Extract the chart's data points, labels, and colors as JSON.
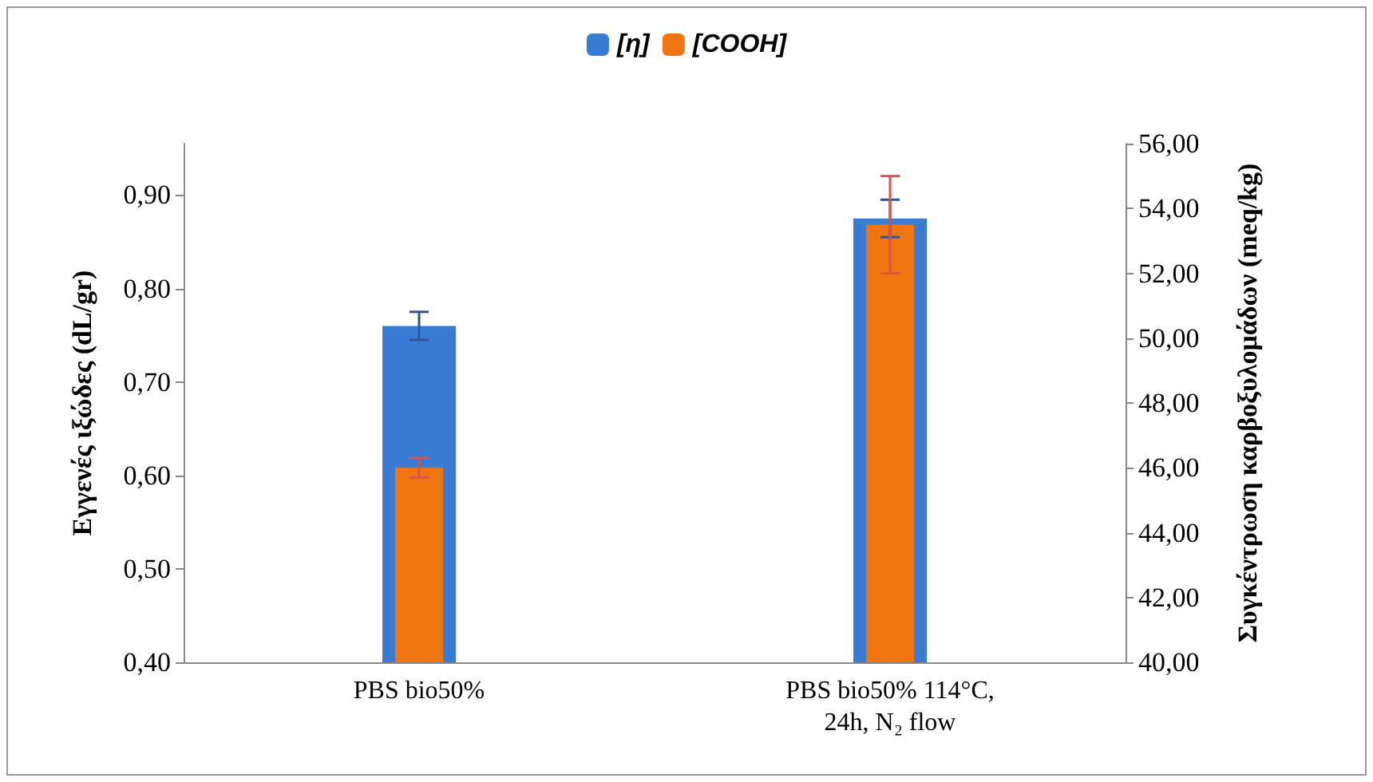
{
  "chart_data": {
    "type": "bar",
    "categories": [
      "PBS bio50%",
      "PBS bio50% 114°C, 24h, N₂ flow"
    ],
    "series": [
      {
        "name": "[η]",
        "color": "#3a7bd5",
        "values": [
          0.76,
          0.875
        ],
        "errors": [
          0.015,
          0.02
        ]
      },
      {
        "name": "[COOH]",
        "color": "#f07410",
        "values": [
          46.0,
          53.5
        ],
        "errors": [
          0.3,
          1.5
        ],
        "axis": "y2"
      }
    ],
    "ylabel": "Εγγενές ιξώδες (dL/gr)",
    "y2label": "Συγκέντρωση καρβοξυλομάδων (meq/kg)",
    "ylim": [
      0.4,
      0.955
    ],
    "yticks": [
      {
        "value": 0.4,
        "label": "0,40"
      },
      {
        "value": 0.5,
        "label": "0,50"
      },
      {
        "value": 0.6,
        "label": "0,60"
      },
      {
        "value": 0.7,
        "label": "0,70"
      },
      {
        "value": 0.8,
        "label": "0,80"
      },
      {
        "value": 0.9,
        "label": "0,90"
      }
    ],
    "y2lim": [
      40,
      56
    ],
    "y2ticks": [
      {
        "value": 40,
        "label": "40,00"
      },
      {
        "value": 42,
        "label": "42,00"
      },
      {
        "value": 44,
        "label": "44,00"
      },
      {
        "value": 46,
        "label": "46,00"
      },
      {
        "value": 48,
        "label": "48,00"
      },
      {
        "value": 50,
        "label": "50,00"
      },
      {
        "value": 52,
        "label": "52,00"
      },
      {
        "value": 54,
        "label": "54,00"
      },
      {
        "value": 56,
        "label": "56,00"
      }
    ],
    "grid": false,
    "legend": "top"
  }
}
